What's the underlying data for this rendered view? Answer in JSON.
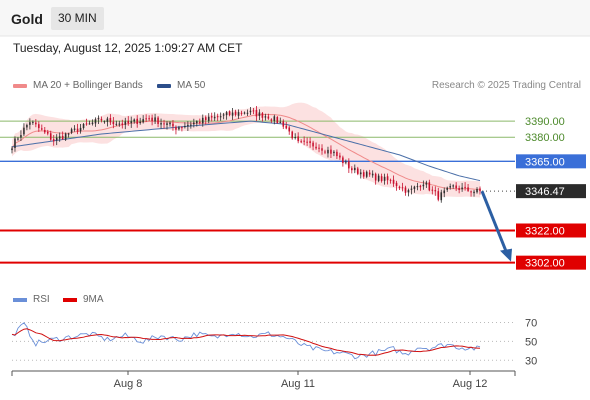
{
  "header": {
    "title": "Gold",
    "timeframe": "30 MIN"
  },
  "datetime": "Tuesday, August 12, 2025 1:09:27 AM CET",
  "legend": {
    "ma20_bb": "MA 20 + Bollinger Bands",
    "ma50": "MA 50"
  },
  "credit": "Research © 2025 Trading Central",
  "rsi_legend": {
    "rsi": "RSI",
    "ma9": "9MA"
  },
  "colors": {
    "bull": "#2e2e2e",
    "bear": "#c8102e",
    "band_fill": "#fbdcdc",
    "ma20": "#f08a8a",
    "ma50": "#4a6fa8",
    "resistance": "#8bb96a",
    "pivot": "#3a6fd8",
    "support": "#e00000",
    "arrow": "#2c5fa3",
    "rsi": "#6a8fd8",
    "rsi_ma": "#d01010"
  },
  "chart_data": [
    {
      "type": "candlestick",
      "title": "",
      "y_range": [
        3285,
        3405
      ],
      "x_labels": [
        "Aug 8",
        "Aug 11",
        "Aug 12"
      ],
      "levels": [
        {
          "label": "3390.00",
          "value": 3390.0,
          "kind": "resistance"
        },
        {
          "label": "3380.00",
          "value": 3380.0,
          "kind": "resistance"
        },
        {
          "label": "3365.00",
          "value": 3365.0,
          "kind": "pivot"
        },
        {
          "label": "3346.47",
          "value": 3346.47,
          "kind": "last"
        },
        {
          "label": "3322.00",
          "value": 3322.0,
          "kind": "support"
        },
        {
          "label": "3302.00",
          "value": 3302.0,
          "kind": "support"
        }
      ],
      "forecast": {
        "from": 3346.47,
        "to": 3302.0
      },
      "close_keyframes": [
        [
          0,
          3375
        ],
        [
          6,
          3390
        ],
        [
          14,
          3378
        ],
        [
          22,
          3385
        ],
        [
          30,
          3391
        ],
        [
          38,
          3388
        ],
        [
          46,
          3392
        ],
        [
          55,
          3386
        ],
        [
          63,
          3390
        ],
        [
          70,
          3393
        ],
        [
          78,
          3396
        ],
        [
          86,
          3393
        ],
        [
          91,
          3388
        ],
        [
          96,
          3376
        ],
        [
          102,
          3375
        ],
        [
          108,
          3370
        ],
        [
          114,
          3360
        ],
        [
          122,
          3355
        ],
        [
          128,
          3352
        ],
        [
          133,
          3346
        ],
        [
          138,
          3352
        ],
        [
          143,
          3343
        ],
        [
          148,
          3349
        ],
        [
          153,
          3347
        ],
        [
          157,
          3346
        ]
      ],
      "ma50_keyframes": [
        [
          0,
          3374
        ],
        [
          30,
          3382
        ],
        [
          60,
          3387
        ],
        [
          80,
          3390
        ],
        [
          92,
          3388
        ],
        [
          100,
          3384
        ],
        [
          110,
          3379
        ],
        [
          120,
          3374
        ],
        [
          130,
          3369
        ],
        [
          140,
          3362
        ],
        [
          150,
          3356
        ],
        [
          157,
          3353
        ]
      ]
    },
    {
      "type": "line",
      "title": "RSI",
      "y_range": [
        25,
        78
      ],
      "y_ticks": [
        "70",
        "50",
        "30"
      ],
      "rsi_keyframes": [
        [
          0,
          56
        ],
        [
          4,
          68
        ],
        [
          8,
          48
        ],
        [
          14,
          52
        ],
        [
          20,
          55
        ],
        [
          26,
          58
        ],
        [
          32,
          52
        ],
        [
          38,
          56
        ],
        [
          44,
          50
        ],
        [
          50,
          56
        ],
        [
          56,
          52
        ],
        [
          62,
          58
        ],
        [
          68,
          54
        ],
        [
          74,
          60
        ],
        [
          80,
          55
        ],
        [
          86,
          58
        ],
        [
          92,
          54
        ],
        [
          98,
          45
        ],
        [
          104,
          40
        ],
        [
          110,
          38
        ],
        [
          116,
          34
        ],
        [
          122,
          38
        ],
        [
          128,
          42
        ],
        [
          132,
          36
        ],
        [
          136,
          44
        ],
        [
          140,
          43
        ],
        [
          146,
          47
        ],
        [
          150,
          44
        ],
        [
          154,
          43
        ],
        [
          157,
          42
        ]
      ]
    }
  ]
}
